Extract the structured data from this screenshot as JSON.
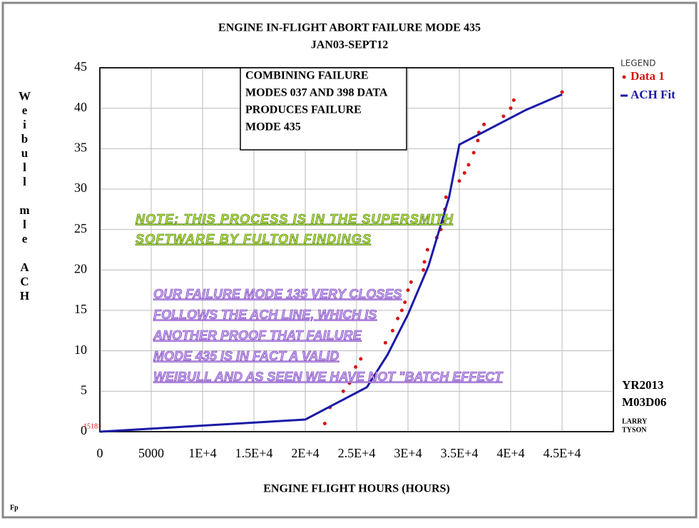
{
  "chart_data": {
    "type": "line",
    "title": "ENGINE IN-FLIGHT ABORT FAILURE MODE 435",
    "subtitle": "JAN03-SEPT12",
    "x_label": "ENGINE FLIGHT HOURS (HOURS)",
    "y_label": "Weibull mle ACH",
    "xlim": [
      0,
      50000
    ],
    "ylim": [
      0,
      45
    ],
    "xticks": [
      0,
      5000,
      {
        "value": 10000,
        "label": "1E+4"
      },
      {
        "value": 15000,
        "label": "1.5E+4"
      },
      {
        "value": 20000,
        "label": "2E+4"
      },
      {
        "value": 25000,
        "label": "2.5E+4"
      },
      {
        "value": 30000,
        "label": "3E+4"
      },
      {
        "value": 35000,
        "label": "3.5E+4"
      },
      {
        "value": 40000,
        "label": "4E+4"
      },
      {
        "value": 45000,
        "label": "4.5E+4"
      }
    ],
    "yticks": [
      0,
      5,
      10,
      15,
      20,
      25,
      30,
      35,
      40,
      45
    ],
    "grid": true,
    "legend_title": "LEGEND",
    "legend": "right",
    "series": [
      {
        "name": "Data 1",
        "color": "#d41515",
        "style": "points",
        "x": [
          21900,
          22400,
          23700,
          24300,
          24900,
          25400,
          27800,
          28500,
          29000,
          29400,
          29700,
          30000,
          30300,
          31500,
          31600,
          31900,
          32800,
          33200,
          33400,
          33600,
          33700,
          35000,
          35500,
          35900,
          36400,
          36800,
          36900,
          37400,
          39300,
          40000,
          40300,
          45000
        ],
        "values": [
          1,
          3,
          5,
          6,
          8,
          9,
          11,
          12.5,
          14,
          15,
          16,
          17.5,
          18.5,
          20,
          21,
          22.5,
          24,
          25,
          26,
          27.5,
          29,
          31,
          32,
          33,
          34.5,
          36,
          37,
          38,
          39,
          40,
          41,
          42
        ]
      },
      {
        "name": "ACH Fit",
        "color": "#1a1aa8",
        "style": "line",
        "x": [
          0,
          20000,
          23000,
          26000,
          28000,
          30000,
          32000,
          34000,
          35000,
          41500,
          45000
        ],
        "values": [
          0,
          1.5,
          3.5,
          5.5,
          9.5,
          14.5,
          20.5,
          29,
          35.5,
          39.8,
          41.7
        ]
      }
    ],
    "box_note": [
      "COMBINING FAILURE",
      "MODES 037 AND 398 DATA",
      "PRODUCES FAILURE",
      "MODE 435"
    ],
    "green_note": [
      "NOTE: THIS PROCESS IS IN THE SUPERSMITH",
      "SOFTWARE BY FULTON FINDINGS"
    ],
    "purple_note": [
      "OUR FAILURE MODE 135 VERY CLOSES",
      "FOLLOWS THE ACH LINE, WHICH IS",
      "ANOTHER PROOF THAT FAILURE",
      "MODE 435 IS IN FACT A VALID",
      "WEIBULL AND AS SEEN WE HAVE NOT \"BATCH EFFECT"
    ],
    "date_stamp": [
      "YR2013",
      "M03D06"
    ],
    "author": [
      "LARRY",
      "TYSON"
    ],
    "origin_label": "1518>",
    "corner_mark": "Fp"
  }
}
